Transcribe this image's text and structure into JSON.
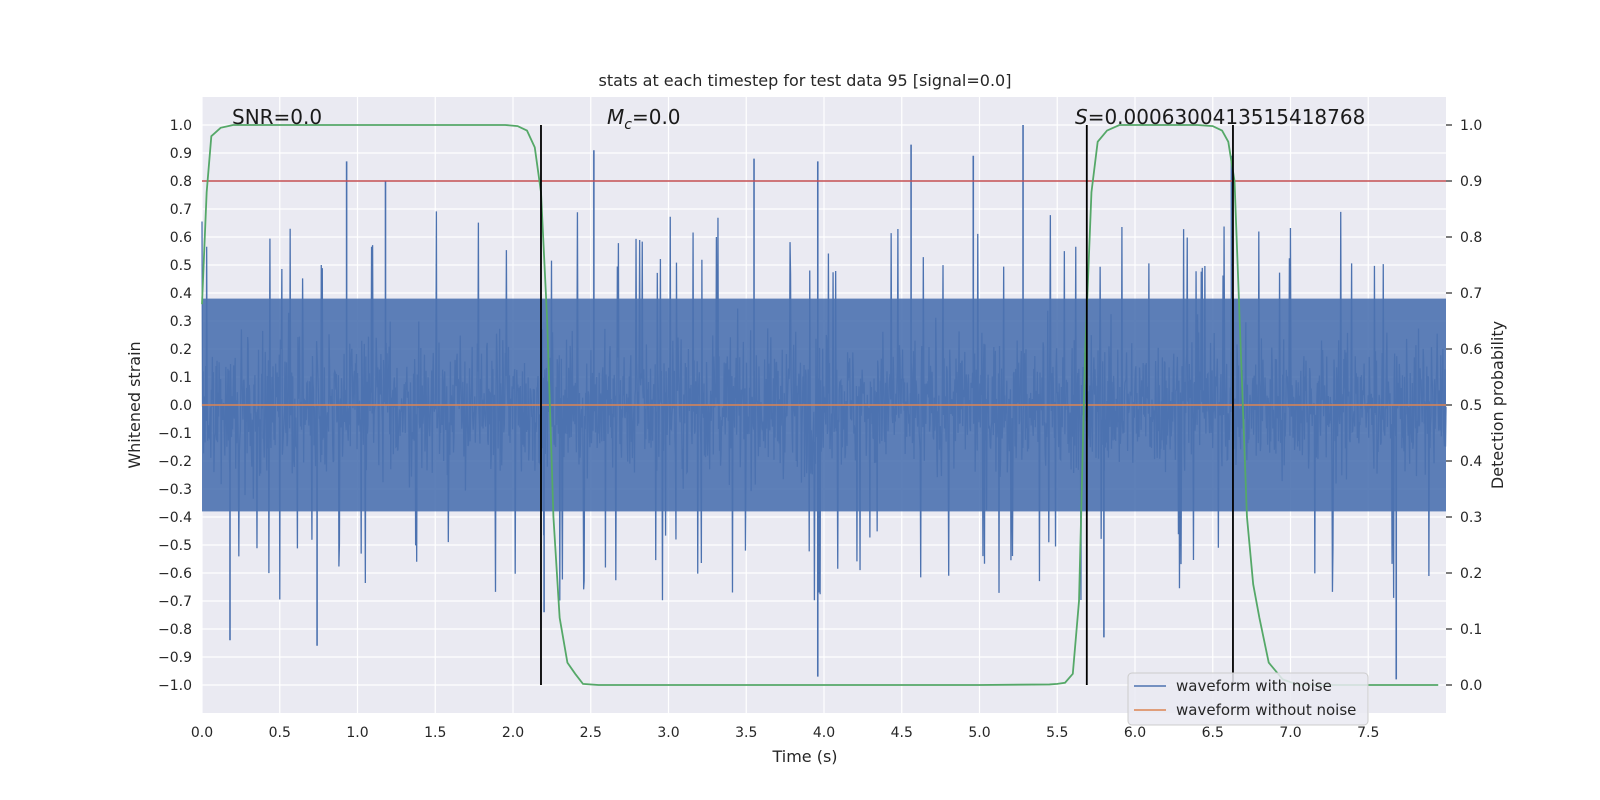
{
  "chart_data": {
    "type": "line",
    "title": "stats at each timestep for test data 95 [signal=0.0]",
    "xlabel": "Time (s)",
    "ylabel": "Whitened strain",
    "ylabel_right": "Detection probability",
    "xlim": [
      0.0,
      8.0
    ],
    "ylim": [
      -1.1,
      1.1
    ],
    "ylim_right": [
      -0.05,
      1.05
    ],
    "x_ticks": [
      0.0,
      0.5,
      1.0,
      1.5,
      2.0,
      2.5,
      3.0,
      3.5,
      4.0,
      4.5,
      5.0,
      5.5,
      6.0,
      6.5,
      7.0,
      7.5
    ],
    "x_tick_labels": [
      "0.0",
      "0.5",
      "1.0",
      "1.5",
      "2.0",
      "2.5",
      "3.0",
      "3.5",
      "4.0",
      "4.5",
      "5.0",
      "5.5",
      "6.0",
      "6.5",
      "7.0",
      "7.5"
    ],
    "y_ticks": [
      -1.0,
      -0.9,
      -0.8,
      -0.7,
      -0.6,
      -0.5,
      -0.4,
      -0.3,
      -0.2,
      -0.1,
      0.0,
      0.1,
      0.2,
      0.3,
      0.4,
      0.5,
      0.6,
      0.7,
      0.8,
      0.9,
      1.0
    ],
    "y_tick_labels": [
      "−1.0",
      "−0.9",
      "−0.8",
      "−0.7",
      "−0.6",
      "−0.5",
      "−0.4",
      "−0.3",
      "−0.2",
      "−0.1",
      "0.0",
      "0.1",
      "0.2",
      "0.3",
      "0.4",
      "0.5",
      "0.6",
      "0.7",
      "0.8",
      "0.9",
      "1.0"
    ],
    "y2_ticks": [
      0.0,
      0.1,
      0.2,
      0.3,
      0.4,
      0.5,
      0.6,
      0.7,
      0.8,
      0.9,
      1.0
    ],
    "y2_tick_labels": [
      "0.0",
      "0.1",
      "0.2",
      "0.3",
      "0.4",
      "0.5",
      "0.6",
      "0.7",
      "0.8",
      "0.9",
      "1.0"
    ],
    "annotations": {
      "snr": "SNR=0.0",
      "mc_symbol": "M",
      "mc_sub": "c",
      "mc_value": "=0.0",
      "s_symbol": "S",
      "s_value": "=0.0006300413515418768"
    },
    "series": [
      {
        "name": "waveform with noise",
        "color": "#4c72b0",
        "description": "dense whitened noise, amplitude mostly within ±0.4 with spikes",
        "peaks": [
          {
            "t": 0.93,
            "v": 0.87
          },
          {
            "t": 1.18,
            "v": 0.8
          },
          {
            "t": 2.52,
            "v": 0.91
          },
          {
            "t": 3.55,
            "v": 0.88
          },
          {
            "t": 3.96,
            "v": 0.87
          },
          {
            "t": 4.56,
            "v": 0.93
          },
          {
            "t": 5.28,
            "v": 1.0
          },
          {
            "t": 4.96,
            "v": 0.89
          },
          {
            "t": 6.62,
            "v": 0.89
          },
          {
            "t": 0.18,
            "v": -0.84
          },
          {
            "t": 0.74,
            "v": -0.86
          },
          {
            "t": 2.2,
            "v": -0.74
          },
          {
            "t": 3.96,
            "v": -0.97
          },
          {
            "t": 7.68,
            "v": -0.98
          },
          {
            "t": 5.8,
            "v": -0.83
          }
        ]
      },
      {
        "name": "waveform without noise",
        "color": "#dd8452",
        "x": [
          0.0,
          8.0
        ],
        "y": [
          0.0,
          0.0
        ]
      },
      {
        "name": "detection probability",
        "color": "#55a868",
        "axis": "right",
        "x": [
          0.0,
          0.03,
          0.06,
          0.12,
          0.2,
          0.5,
          1.0,
          1.5,
          1.95,
          2.03,
          2.09,
          2.14,
          2.18,
          2.22,
          2.26,
          2.3,
          2.35,
          2.4,
          2.45,
          2.55,
          3.0,
          4.0,
          5.0,
          5.45,
          5.5,
          5.55,
          5.6,
          5.64,
          5.68,
          5.72,
          5.76,
          5.82,
          5.9,
          6.0,
          6.4,
          6.5,
          6.56,
          6.6,
          6.64,
          6.68,
          6.72,
          6.76,
          6.8,
          6.86,
          6.95,
          7.05,
          7.5,
          7.95
        ],
        "y": [
          0.68,
          0.88,
          0.98,
          0.995,
          1.0,
          1.0,
          1.0,
          1.0,
          1.0,
          0.998,
          0.99,
          0.96,
          0.88,
          0.65,
          0.3,
          0.12,
          0.04,
          0.02,
          0.002,
          0.0,
          0.0,
          0.0,
          0.0,
          0.001,
          0.002,
          0.004,
          0.02,
          0.15,
          0.6,
          0.88,
          0.97,
          0.99,
          1.0,
          1.0,
          1.0,
          0.998,
          0.99,
          0.97,
          0.9,
          0.6,
          0.3,
          0.18,
          0.12,
          0.04,
          0.01,
          0.0,
          0.0,
          0.0
        ]
      }
    ],
    "hlines": [
      {
        "name": "threshold",
        "axis": "right",
        "value": 0.9,
        "color": "#c44e52"
      }
    ],
    "vlines": [
      {
        "name": "detection-boundary",
        "x": 2.18,
        "color": "#000000"
      },
      {
        "name": "detection-boundary",
        "x": 5.69,
        "color": "#000000"
      },
      {
        "name": "detection-boundary",
        "x": 6.63,
        "color": "#000000"
      }
    ],
    "grid": true,
    "legend": {
      "location": "lower-right",
      "entries": [
        "waveform with noise",
        "waveform without noise"
      ]
    },
    "background": "#eaeaf2",
    "grid_color": "#ffffff"
  }
}
